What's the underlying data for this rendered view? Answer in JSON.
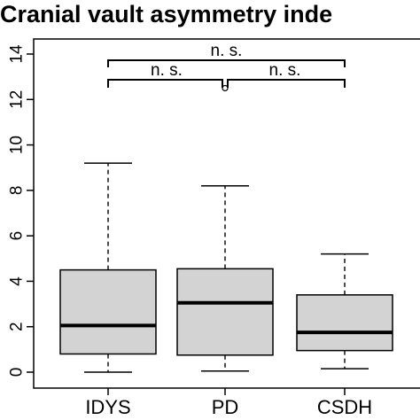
{
  "chart_data": {
    "type": "boxplot",
    "title": "Cranial vault asymmetry inde",
    "xlabel": "",
    "ylabel": "",
    "ylim": [
      0,
      14
    ],
    "yticks": [
      0,
      2,
      4,
      6,
      8,
      10,
      12,
      14
    ],
    "categories": [
      "IDYS",
      "PD",
      "CSDH"
    ],
    "boxes": [
      {
        "category": "IDYS",
        "min": 0.0,
        "q1": 0.8,
        "median": 2.05,
        "q3": 4.5,
        "max": 9.2,
        "outliers": []
      },
      {
        "category": "PD",
        "min": 0.05,
        "q1": 0.75,
        "median": 3.05,
        "q3": 4.55,
        "max": 8.2,
        "outliers": [
          12.5
        ]
      },
      {
        "category": "CSDH",
        "min": 0.15,
        "q1": 0.95,
        "median": 1.75,
        "q3": 3.4,
        "max": 5.2,
        "outliers": []
      }
    ],
    "box_fill": "#d3d3d3",
    "comparisons": [
      {
        "from": "IDYS",
        "to": "PD",
        "label": "n. s.",
        "level": 1
      },
      {
        "from": "PD",
        "to": "CSDH",
        "label": "n. s.",
        "level": 1
      },
      {
        "from": "IDYS",
        "to": "CSDH",
        "label": "n. s.",
        "level": 2
      }
    ]
  }
}
